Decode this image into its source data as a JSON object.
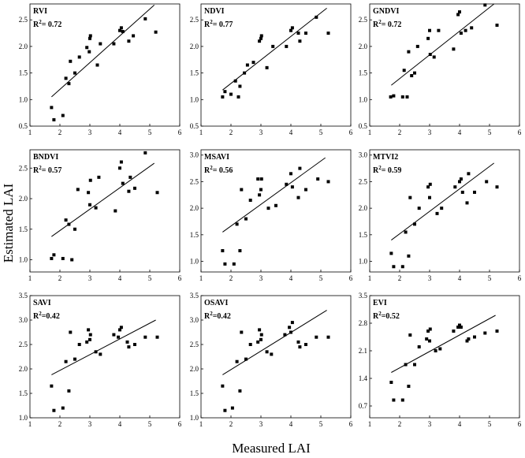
{
  "figure": {
    "xlabel": "Measured LAI",
    "ylabel": "Estimated LAI"
  },
  "chart_data": [
    {
      "type": "scatter",
      "title": "RVI",
      "r2_prefix": "R",
      "r2_sup": "2",
      "r2_value": "= 0.72",
      "xlim": [
        1,
        6
      ],
      "ylim": [
        0.5,
        2.8
      ],
      "xticks": [
        1,
        2,
        3,
        4,
        5,
        6
      ],
      "yticks": [
        0.5,
        1.0,
        1.5,
        2.0,
        2.5
      ],
      "ytick_labels": [
        "0.5",
        "1.0",
        "1.5",
        "2.0",
        "2.5"
      ],
      "x": [
        1.72,
        1.8,
        2.1,
        2.2,
        2.3,
        2.35,
        2.5,
        2.65,
        2.9,
        2.98,
        3.0,
        3.02,
        3.25,
        3.35,
        3.8,
        4.0,
        4.05,
        4.1,
        4.3,
        4.45,
        4.85,
        5.2
      ],
      "y": [
        0.85,
        0.62,
        0.7,
        1.4,
        1.3,
        1.72,
        1.5,
        1.8,
        1.98,
        1.9,
        2.15,
        2.2,
        1.65,
        2.05,
        2.05,
        2.3,
        2.35,
        2.28,
        2.1,
        2.2,
        2.52,
        2.27
      ],
      "fit": [
        [
          1.72,
          1.05
        ],
        [
          5.15,
          2.78
        ]
      ]
    },
    {
      "type": "scatter",
      "title": "NDVI",
      "r2_prefix": "R",
      "r2_sup": "2",
      "r2_value": "= 0.77",
      "xlim": [
        1,
        6
      ],
      "ylim": [
        0.5,
        2.8
      ],
      "xticks": [
        1,
        2,
        3,
        4,
        5,
        6
      ],
      "yticks": [
        0.5,
        1.0,
        1.5,
        2.0,
        2.5
      ],
      "ytick_labels": [
        "0.5",
        "1.0",
        "1.5",
        "2.0",
        "2.5"
      ],
      "x": [
        1.72,
        1.8,
        2.0,
        2.15,
        2.25,
        2.3,
        2.45,
        2.55,
        2.75,
        2.95,
        3.0,
        3.02,
        3.2,
        3.4,
        3.85,
        4.0,
        4.05,
        4.25,
        4.3,
        4.5,
        4.85,
        5.25
      ],
      "y": [
        1.05,
        1.15,
        1.1,
        1.35,
        1.05,
        1.25,
        1.5,
        1.65,
        1.7,
        2.1,
        2.15,
        2.2,
        1.6,
        2.0,
        2.0,
        2.3,
        2.35,
        2.25,
        2.1,
        2.25,
        2.55,
        2.25
      ],
      "fit": [
        [
          1.72,
          1.18
        ],
        [
          5.2,
          2.72
        ]
      ]
    },
    {
      "type": "scatter",
      "title": "GNDVI",
      "r2_prefix": "R",
      "r2_sup": "2",
      "r2_value": "= 0.72",
      "xlim": [
        1,
        6
      ],
      "ylim": [
        0.5,
        2.8
      ],
      "xticks": [
        1,
        2,
        3,
        4,
        5,
        6
      ],
      "yticks": [
        0.5,
        1.0,
        1.5,
        2.0,
        2.5
      ],
      "ytick_labels": [
        "0.5",
        "1.0",
        "1.5",
        "2.0",
        "2.5"
      ],
      "x": [
        1.7,
        1.8,
        2.1,
        2.15,
        2.25,
        2.3,
        2.4,
        2.5,
        2.6,
        2.95,
        3.0,
        3.02,
        3.15,
        3.3,
        3.8,
        3.95,
        4.0,
        4.05,
        4.2,
        4.4,
        4.85,
        5.25
      ],
      "y": [
        1.05,
        1.07,
        1.05,
        1.55,
        1.05,
        1.9,
        1.45,
        1.5,
        2.0,
        2.15,
        2.3,
        1.85,
        1.8,
        2.3,
        1.95,
        2.6,
        2.65,
        2.25,
        2.3,
        2.35,
        2.78,
        2.4
      ],
      "fit": [
        [
          1.72,
          1.27
        ],
        [
          5.15,
          2.8
        ]
      ]
    },
    {
      "type": "scatter",
      "title": "BNDVI",
      "r2_prefix": "R",
      "r2_sup": "2",
      "r2_value": "= 0.57",
      "xlim": [
        1,
        6
      ],
      "ylim": [
        0.8,
        2.8
      ],
      "xticks": [
        1,
        2,
        3,
        4,
        5,
        6
      ],
      "yticks": [
        1.0,
        1.5,
        2.0,
        2.5
      ],
      "ytick_labels": [
        "1.0",
        "1.5",
        "2.0",
        "2.5"
      ],
      "x": [
        1.72,
        1.8,
        2.1,
        2.2,
        2.3,
        2.4,
        2.5,
        2.6,
        2.95,
        3.0,
        3.02,
        3.2,
        3.3,
        3.85,
        4.0,
        4.05,
        4.1,
        4.3,
        4.35,
        4.5,
        4.85,
        5.25
      ],
      "y": [
        1.02,
        1.08,
        1.02,
        1.65,
        1.58,
        1.0,
        1.5,
        2.15,
        2.1,
        1.9,
        2.3,
        1.85,
        2.35,
        1.8,
        2.5,
        2.6,
        2.25,
        2.12,
        2.35,
        2.17,
        2.75,
        2.1
      ],
      "fit": [
        [
          1.72,
          1.38
        ],
        [
          5.15,
          2.58
        ]
      ]
    },
    {
      "type": "scatter",
      "title": "MSAVI",
      "r2_prefix": "R",
      "r2_sup": "2",
      "r2_value": "= 0.56",
      "xlim": [
        1,
        6
      ],
      "ylim": [
        0.8,
        3.1
      ],
      "xticks": [
        1,
        2,
        3,
        4,
        5,
        6
      ],
      "yticks": [
        1.0,
        1.5,
        2.0,
        2.5,
        3.0
      ],
      "ytick_labels": [
        "1.0",
        "1.5",
        "2.0",
        "2.5",
        "3.0"
      ],
      "x": [
        1.72,
        1.8,
        2.1,
        2.2,
        2.3,
        2.35,
        2.5,
        2.65,
        2.9,
        2.95,
        3.0,
        3.02,
        3.25,
        3.5,
        3.85,
        4.0,
        4.05,
        4.25,
        4.3,
        4.5,
        4.9,
        5.25
      ],
      "y": [
        1.2,
        0.95,
        0.95,
        1.7,
        1.2,
        2.35,
        1.8,
        2.15,
        2.55,
        2.25,
        2.35,
        2.55,
        2.0,
        2.05,
        2.45,
        2.65,
        2.4,
        2.2,
        2.75,
        2.35,
        2.55,
        2.5
      ],
      "fit": [
        [
          1.72,
          1.55
        ],
        [
          5.15,
          2.95
        ]
      ]
    },
    {
      "type": "scatter",
      "title": "MTVI2",
      "r2_prefix": "R",
      "r2_sup": "2",
      "r2_value": "= 0.59",
      "xlim": [
        1,
        6
      ],
      "ylim": [
        0.8,
        3.1
      ],
      "xticks": [
        1,
        2,
        3,
        4,
        5,
        6
      ],
      "yticks": [
        1.0,
        1.5,
        2.0,
        2.5,
        3.0
      ],
      "ytick_labels": [
        "1.0",
        "1.5",
        "2.0",
        "2.5",
        "3.0"
      ],
      "x": [
        1.72,
        1.8,
        2.1,
        2.2,
        2.3,
        2.35,
        2.5,
        2.65,
        2.95,
        3.0,
        3.02,
        3.25,
        3.4,
        3.85,
        4.0,
        4.05,
        4.1,
        4.25,
        4.3,
        4.5,
        4.9,
        5.25
      ],
      "y": [
        1.15,
        0.9,
        0.9,
        1.55,
        1.1,
        2.2,
        1.7,
        2.0,
        2.4,
        2.2,
        2.45,
        1.9,
        2.0,
        2.4,
        2.5,
        2.55,
        2.3,
        2.1,
        2.65,
        2.3,
        2.5,
        2.4
      ],
      "fit": [
        [
          1.72,
          1.4
        ],
        [
          5.15,
          2.85
        ]
      ]
    },
    {
      "type": "scatter",
      "title": "SAVI",
      "r2_prefix": "R",
      "r2_sup": "2",
      "r2_value": "=0.42",
      "xlim": [
        1,
        6
      ],
      "ylim": [
        1.0,
        3.5
      ],
      "xticks": [
        1,
        2,
        3,
        4,
        5,
        6
      ],
      "yticks": [
        1.0,
        1.5,
        2.0,
        2.5,
        3.0,
        3.5
      ],
      "ytick_labels": [
        "1.0",
        "1.5",
        "2.0",
        "2.5",
        "3.0",
        "3.5"
      ],
      "x": [
        1.72,
        1.8,
        2.1,
        2.2,
        2.3,
        2.35,
        2.5,
        2.65,
        2.9,
        2.95,
        3.0,
        3.02,
        3.2,
        3.35,
        3.8,
        3.95,
        4.0,
        4.05,
        4.25,
        4.3,
        4.5,
        4.85,
        5.25
      ],
      "y": [
        1.65,
        1.15,
        1.2,
        2.15,
        1.55,
        2.75,
        2.2,
        2.5,
        2.55,
        2.8,
        2.6,
        2.7,
        2.35,
        2.3,
        2.7,
        2.65,
        2.8,
        2.85,
        2.55,
        2.45,
        2.5,
        2.65,
        2.65
      ],
      "fit": [
        [
          1.72,
          1.88
        ],
        [
          5.2,
          3.0
        ]
      ]
    },
    {
      "type": "scatter",
      "title": "OSAVI",
      "r2_prefix": "R",
      "r2_sup": "2",
      "r2_value": "=0.42",
      "xlim": [
        1,
        6
      ],
      "ylim": [
        1.0,
        3.5
      ],
      "xticks": [
        1,
        2,
        3,
        4,
        5,
        6
      ],
      "yticks": [
        1.0,
        1.5,
        2.0,
        2.5,
        3.0,
        3.5
      ],
      "ytick_labels": [
        "1.0",
        "1.5",
        "2.0",
        "2.5",
        "3.0",
        "3.5"
      ],
      "x": [
        1.72,
        1.8,
        2.05,
        2.2,
        2.3,
        2.35,
        2.5,
        2.65,
        2.9,
        2.95,
        3.0,
        3.02,
        3.2,
        3.35,
        3.8,
        3.95,
        4.0,
        4.05,
        4.25,
        4.3,
        4.5,
        4.85,
        5.25
      ],
      "y": [
        1.65,
        1.15,
        1.2,
        2.15,
        1.55,
        2.75,
        2.2,
        2.5,
        2.55,
        2.8,
        2.6,
        2.7,
        2.35,
        2.3,
        2.7,
        2.85,
        2.75,
        2.95,
        2.55,
        2.45,
        2.5,
        2.65,
        2.65
      ],
      "fit": [
        [
          1.72,
          1.88
        ],
        [
          5.2,
          3.2
        ]
      ]
    },
    {
      "type": "scatter",
      "title": "EVI",
      "r2_prefix": "R",
      "r2_sup": "2",
      "r2_value": "=0.52",
      "xlim": [
        1,
        6
      ],
      "ylim": [
        0.4,
        3.5
      ],
      "xticks": [
        1,
        2,
        3,
        4,
        5,
        6
      ],
      "yticks": [
        0.7,
        1.4,
        2.1,
        2.8,
        3.5
      ],
      "ytick_labels": [
        "0.7",
        "1.4",
        "2.1",
        "2.8",
        "3.5"
      ],
      "x": [
        1.72,
        1.8,
        2.1,
        2.2,
        2.3,
        2.35,
        2.5,
        2.65,
        2.9,
        2.95,
        3.0,
        3.02,
        3.2,
        3.35,
        3.8,
        3.95,
        4.0,
        4.05,
        4.25,
        4.3,
        4.5,
        4.85,
        5.25
      ],
      "y": [
        1.3,
        0.85,
        0.85,
        1.75,
        1.2,
        2.5,
        1.75,
        2.2,
        2.4,
        2.6,
        2.35,
        2.65,
        2.1,
        2.15,
        2.6,
        2.7,
        2.75,
        2.7,
        2.35,
        2.4,
        2.45,
        2.55,
        2.6
      ],
      "fit": [
        [
          1.72,
          1.55
        ],
        [
          5.2,
          3.0
        ]
      ]
    }
  ]
}
